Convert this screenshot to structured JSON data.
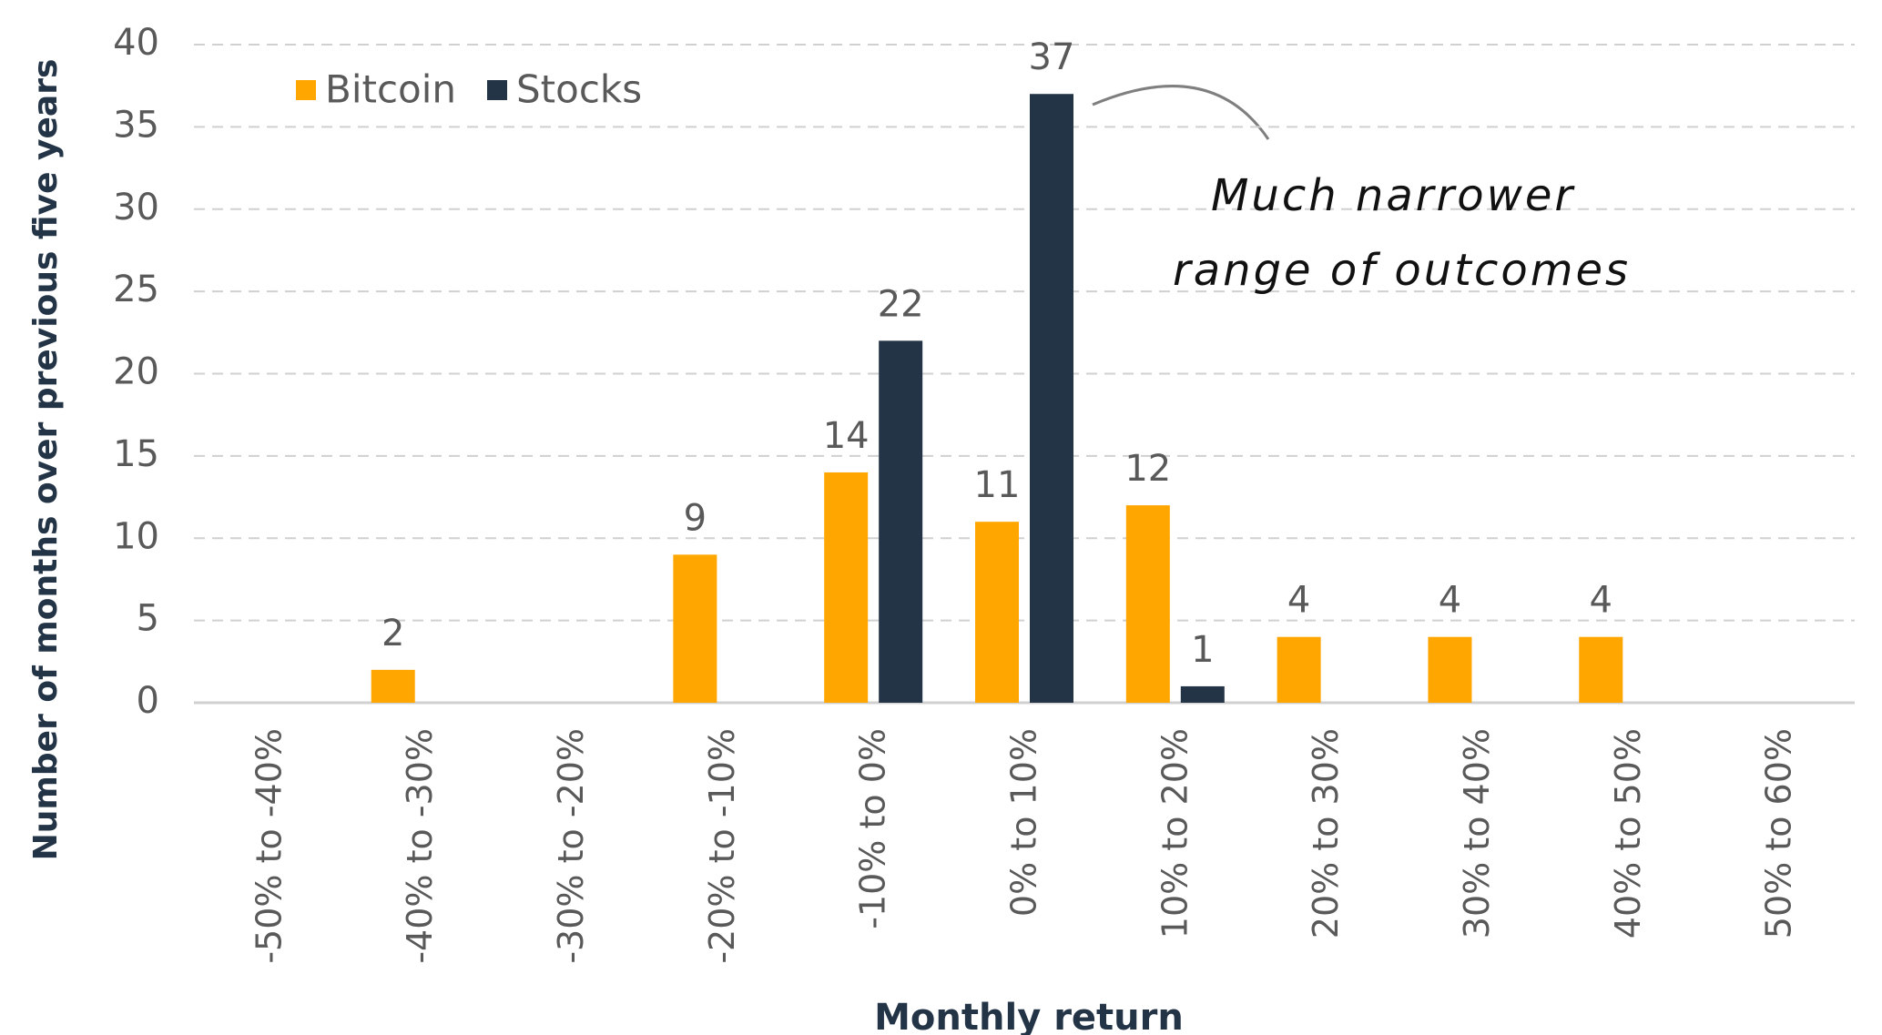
{
  "chart_data": {
    "type": "bar",
    "x_label": "Monthly return",
    "y_label": "Number of months over previous five years",
    "categories": [
      "-50% to -40%",
      "-40% to -30%",
      "-30% to -20%",
      "-20% to -10%",
      "-10% to 0%",
      "0% to 10%",
      "10% to 20%",
      "20% to 30%",
      "30% to 40%",
      "40% to 50%",
      "50% to 60%"
    ],
    "series": [
      {
        "name": "Bitcoin",
        "color": "#ffa600",
        "values": [
          null,
          2,
          null,
          9,
          14,
          11,
          12,
          4,
          4,
          4,
          null
        ]
      },
      {
        "name": "Stocks",
        "color": "#243447",
        "values": [
          null,
          null,
          null,
          null,
          22,
          37,
          1,
          null,
          null,
          null,
          null
        ]
      }
    ],
    "ylim": [
      0,
      40
    ],
    "yticks": [
      0,
      5,
      10,
      15,
      20,
      25,
      30,
      35,
      40
    ],
    "grid": true,
    "legend": "top-left",
    "annotation": [
      "Much narrower",
      "range of outcomes"
    ]
  }
}
